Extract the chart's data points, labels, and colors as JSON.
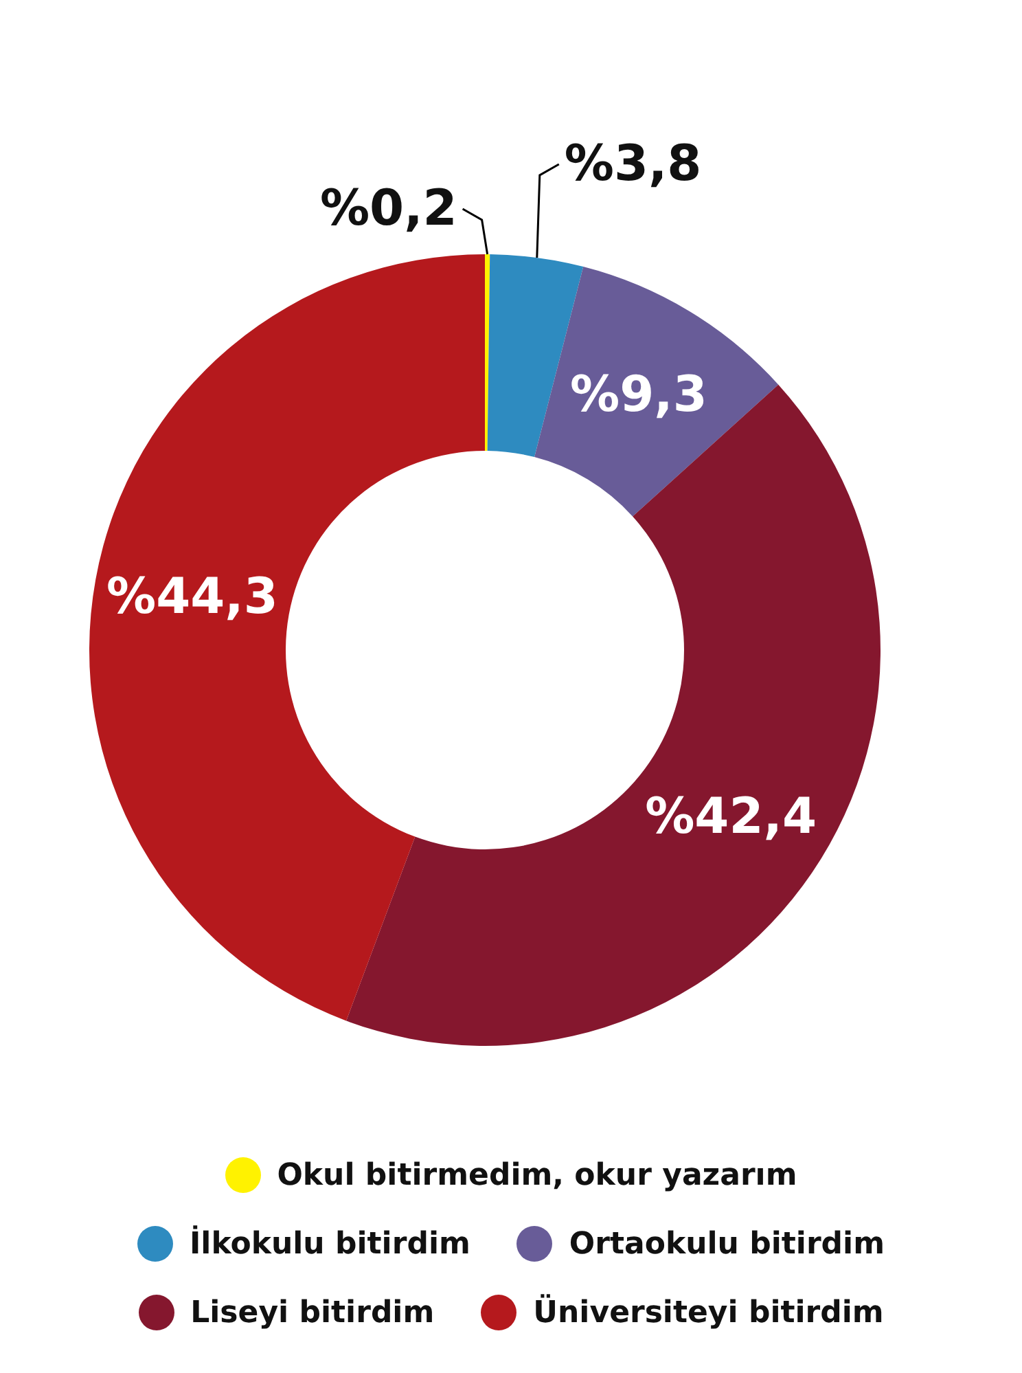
{
  "chart_data": {
    "type": "donut",
    "categories": [
      "Okul bitirmedim, okur yazarım",
      "İlkokulu bitirdim",
      "Ortaokulu bitirdim",
      "Liseyi bitirdim",
      "Üniversiteyi bitirdim"
    ],
    "values": [
      0.2,
      3.8,
      9.3,
      42.4,
      44.3
    ],
    "value_labels": [
      "%0,2",
      "%3,8",
      "%9,3",
      "%42,4",
      "%44,3"
    ],
    "colors": [
      "#fff200",
      "#2e8bc0",
      "#685c98",
      "#85172e",
      "#b5191d"
    ],
    "legend": "bottom"
  }
}
